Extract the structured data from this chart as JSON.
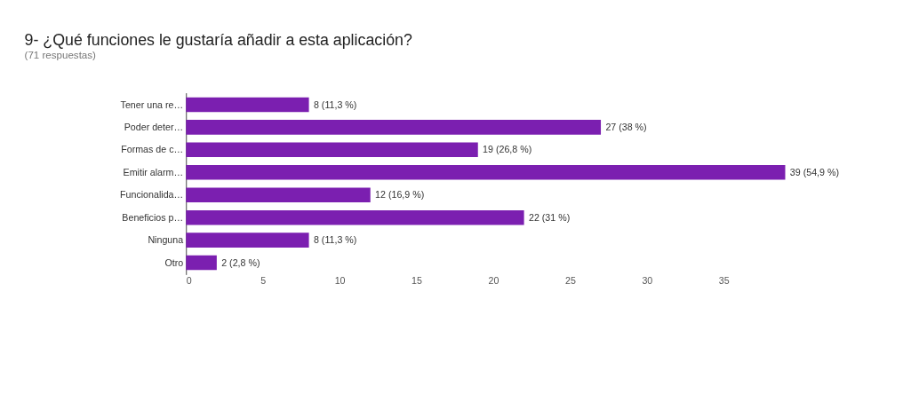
{
  "chart_data": {
    "type": "bar",
    "orientation": "horizontal",
    "title": "9- ¿Qué funciones le gustaría añadir a esta aplicación?",
    "subtitle": "(71 respuestas)",
    "categories": [
      "Tener una re…",
      "Poder deter…",
      "Formas de c…",
      "Emitir alarm…",
      "Funcionalida…",
      "Beneficios p…",
      "Ninguna",
      "Otro"
    ],
    "values": [
      8,
      27,
      19,
      39,
      12,
      22,
      8,
      2
    ],
    "value_labels": [
      "8 (11,3 %)",
      "27 (38 %)",
      "19 (26,8 %)",
      "39 (54,9 %)",
      "12 (16,9 %)",
      "22 (31 %)",
      "8 (11,3 %)",
      "2 (2,8 %)"
    ],
    "color": "#7b1fb0",
    "xlim": [
      0,
      39
    ],
    "xticks": [
      0,
      5,
      10,
      15,
      20,
      25,
      30,
      35
    ],
    "grid": false
  }
}
